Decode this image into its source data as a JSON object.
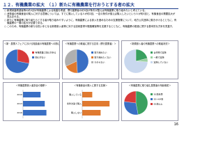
{
  "header": {
    "title": "１２．有機農業の拡大　（１）新たに有機農業を行おうとする者の拡大"
  },
  "bullets": [
    "新規就農希望者等の約3割が有機農業による就農を希望、慣行農業者の約5割が条件が整えば有機農業に取り組みたいと考えている。",
    "消費者の有機食品の購入に対する意識については、すでに購入している人が約2割、一定の条件が揃えば購入したいという人が約5割と、有機食品の需要拡大が見込まれる。",
    "新たに有機農業に取り組もうとする者が取り組みやすいように、有機農業による参入を進めるための支援措置について、地方公共団体に働きかけるとともに、有機農業の一層の拡大が必要である。",
    "このため、有機農業の新たな担い手となる新規参入者等に対する技術習得や販路確保等を支援するとともに、有機農業の推進に関する基本的な方針を見直す。"
  ],
  "panels": [
    {
      "title": "＜新・農業人フェアにおける相談者の有機農業への関心＞",
      "type": "pie",
      "labels": [
        "有機農業に関心がある",
        "関心がない"
      ],
      "values": [
        28,
        72
      ],
      "colors": [
        "#d83a3a",
        "#3a6fc4"
      ]
    },
    {
      "title": "＜有機農業への取組に関する意向（慣行農業者）＞",
      "type": "pie",
      "labels": [
        "取り組みたい",
        "取り組みたくない",
        "わからない"
      ],
      "values": [
        49,
        19,
        32
      ],
      "colors": [
        "#3a6fc4",
        "#e07a30",
        "#b0b0b0"
      ]
    },
    {
      "title": "＜新規参入者の有機農業への取組状況＞",
      "type": "pie",
      "labels": [
        "全作物で実施",
        "一部で実施",
        "実施していない"
      ],
      "values": [
        21,
        5,
        74
      ],
      "colors": [
        "#3aa060",
        "#9bd0a0",
        "#c9d8ee"
      ]
    },
    {
      "title": "＜有機農業参入者割合の推移＞",
      "type": "bar",
      "categories": [
        "2010",
        "2013",
        "2016"
      ],
      "values": [
        21,
        26,
        28
      ],
      "color": "#3a6fc4",
      "xlim": [
        0,
        40
      ]
    },
    {
      "title": "＜有機食品の購入に関する意識＞",
      "type": "bar",
      "categories": [
        "購入している",
        "条件次第で購入",
        "購入しない"
      ],
      "values": [
        18,
        49,
        33
      ],
      "color": "#e07a30",
      "xlim": [
        0,
        60
      ]
    },
    {
      "title": "＜有機農業に取り組む農業者の年齢構成＞",
      "type": "pie",
      "labels": [
        "50歳未満",
        "50～64歳",
        "65歳以上"
      ],
      "values": [
        47,
        30,
        23
      ],
      "colors": [
        "#3aa060",
        "#3a6fc4",
        "#d83a3a"
      ]
    }
  ],
  "page": "16"
}
